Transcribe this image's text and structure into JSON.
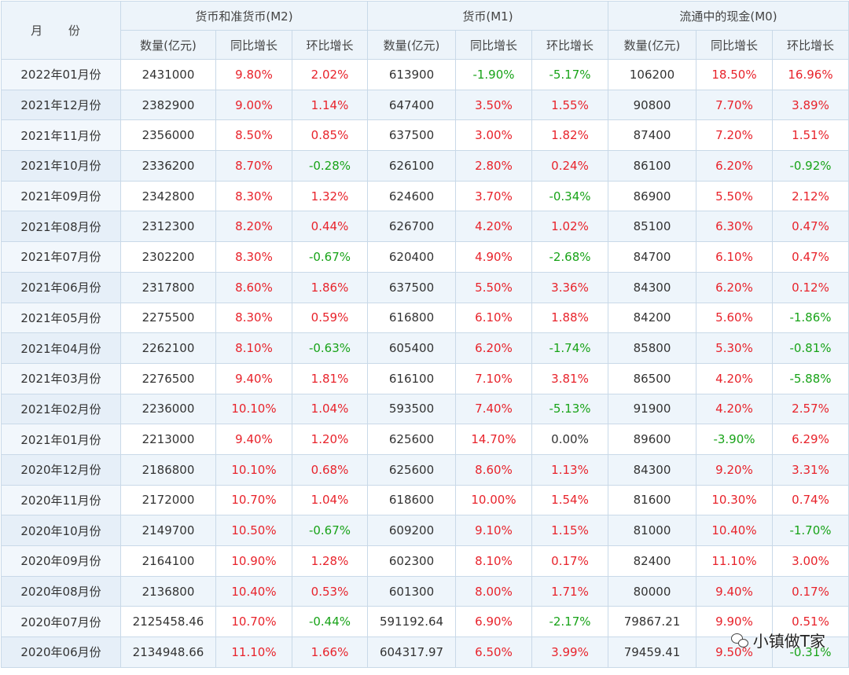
{
  "header": {
    "month": "月 份",
    "groups": [
      "货币和准货币(M2)",
      "货币(M1)",
      "流通中的现金(M0)"
    ],
    "sub": [
      "数量(亿元)",
      "同比增长",
      "环比增长",
      "数量(亿元)",
      "同比增长",
      "环比增长",
      "数量(亿元)",
      "同比增长",
      "环比增长"
    ]
  },
  "rows": [
    [
      "2022年01月份",
      "2431000",
      "9.80%",
      "2.02%",
      "613900",
      "-1.90%",
      "-5.17%",
      "106200",
      "18.50%",
      "16.96%"
    ],
    [
      "2021年12月份",
      "2382900",
      "9.00%",
      "1.14%",
      "647400",
      "3.50%",
      "1.55%",
      "90800",
      "7.70%",
      "3.89%"
    ],
    [
      "2021年11月份",
      "2356000",
      "8.50%",
      "0.85%",
      "637500",
      "3.00%",
      "1.82%",
      "87400",
      "7.20%",
      "1.51%"
    ],
    [
      "2021年10月份",
      "2336200",
      "8.70%",
      "-0.28%",
      "626100",
      "2.80%",
      "0.24%",
      "86100",
      "6.20%",
      "-0.92%"
    ],
    [
      "2021年09月份",
      "2342800",
      "8.30%",
      "1.32%",
      "624600",
      "3.70%",
      "-0.34%",
      "86900",
      "5.50%",
      "2.12%"
    ],
    [
      "2021年08月份",
      "2312300",
      "8.20%",
      "0.44%",
      "626700",
      "4.20%",
      "1.02%",
      "85100",
      "6.30%",
      "0.47%"
    ],
    [
      "2021年07月份",
      "2302200",
      "8.30%",
      "-0.67%",
      "620400",
      "4.90%",
      "-2.68%",
      "84700",
      "6.10%",
      "0.47%"
    ],
    [
      "2021年06月份",
      "2317800",
      "8.60%",
      "1.86%",
      "637500",
      "5.50%",
      "3.36%",
      "84300",
      "6.20%",
      "0.12%"
    ],
    [
      "2021年05月份",
      "2275500",
      "8.30%",
      "0.59%",
      "616800",
      "6.10%",
      "1.88%",
      "84200",
      "5.60%",
      "-1.86%"
    ],
    [
      "2021年04月份",
      "2262100",
      "8.10%",
      "-0.63%",
      "605400",
      "6.20%",
      "-1.74%",
      "85800",
      "5.30%",
      "-0.81%"
    ],
    [
      "2021年03月份",
      "2276500",
      "9.40%",
      "1.81%",
      "616100",
      "7.10%",
      "3.81%",
      "86500",
      "4.20%",
      "-5.88%"
    ],
    [
      "2021年02月份",
      "2236000",
      "10.10%",
      "1.04%",
      "593500",
      "7.40%",
      "-5.13%",
      "91900",
      "4.20%",
      "2.57%"
    ],
    [
      "2021年01月份",
      "2213000",
      "9.40%",
      "1.20%",
      "625600",
      "14.70%",
      "0.00%",
      "89600",
      "-3.90%",
      "6.29%"
    ],
    [
      "2020年12月份",
      "2186800",
      "10.10%",
      "0.68%",
      "625600",
      "8.60%",
      "1.13%",
      "84300",
      "9.20%",
      "3.31%"
    ],
    [
      "2020年11月份",
      "2172000",
      "10.70%",
      "1.04%",
      "618600",
      "10.00%",
      "1.54%",
      "81600",
      "10.30%",
      "0.74%"
    ],
    [
      "2020年10月份",
      "2149700",
      "10.50%",
      "-0.67%",
      "609200",
      "9.10%",
      "1.15%",
      "81000",
      "10.40%",
      "-1.70%"
    ],
    [
      "2020年09月份",
      "2164100",
      "10.90%",
      "1.28%",
      "602300",
      "8.10%",
      "0.17%",
      "82400",
      "11.10%",
      "3.00%"
    ],
    [
      "2020年08月份",
      "2136800",
      "10.40%",
      "0.53%",
      "601300",
      "8.00%",
      "1.71%",
      "80000",
      "9.40%",
      "0.17%"
    ],
    [
      "2020年07月份",
      "2125458.46",
      "10.70%",
      "-0.44%",
      "591192.64",
      "6.90%",
      "-2.17%",
      "79867.21",
      "9.90%",
      "0.51%"
    ],
    [
      "2020年06月份",
      "2134948.66",
      "11.10%",
      "1.66%",
      "604317.97",
      "6.50%",
      "3.99%",
      "79459.41",
      "9.50%",
      "-0.31%"
    ]
  ],
  "watermark": {
    "label": "小镇做T家",
    "icon": "wechat-icon"
  },
  "colors": {
    "up": "#e8232b",
    "down": "#18a318",
    "header_bg": "#edf4fa",
    "border": "#c9d9e8"
  }
}
